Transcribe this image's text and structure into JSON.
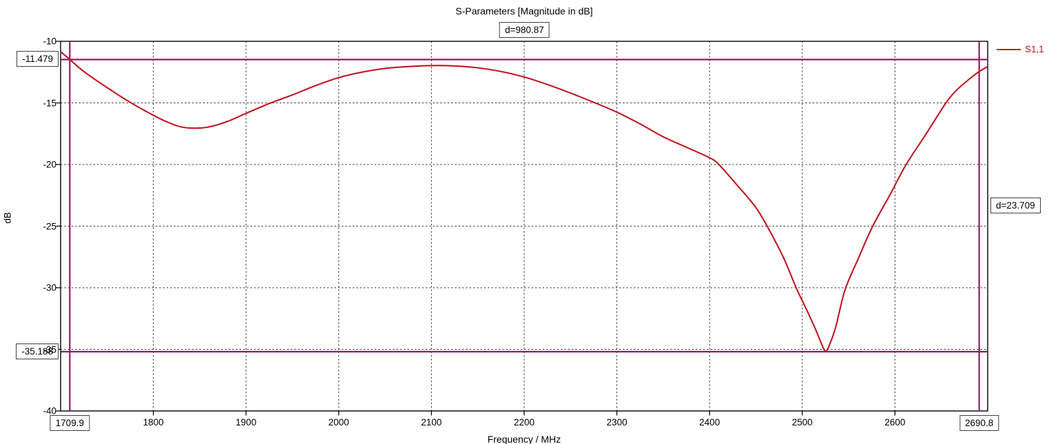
{
  "accent_colors": {
    "curve": "#c01622",
    "marker": "#8d1a60",
    "grid": "#3a3a3a",
    "axis": "#000000"
  },
  "legend": {
    "position": "top-right"
  },
  "markers": {
    "h_lines": [
      {
        "value": -11.479,
        "label": "-11.479"
      },
      {
        "value": -35.188,
        "label": "-35.188"
      }
    ],
    "v_lines": [
      {
        "value": 1709.9,
        "label": "1709.9"
      },
      {
        "value": 2690.8,
        "label": "2690.8"
      }
    ],
    "delta_x": {
      "label": "d=980.87"
    },
    "delta_y": {
      "label": "d=23.709"
    }
  },
  "chart_data": {
    "type": "line",
    "title": "S-Parameters [Magnitude in dB]",
    "xlabel": "Frequency / MHz",
    "ylabel": "dB",
    "xlim": [
      1700,
      2700
    ],
    "ylim": [
      -40,
      -10
    ],
    "xticks": [
      1800,
      1900,
      2000,
      2100,
      2200,
      2300,
      2400,
      2500,
      2600
    ],
    "yticks": [
      -10,
      -15,
      -20,
      -25,
      -30,
      -35,
      -40
    ],
    "grid": "dashed",
    "legend_position": "top-right",
    "series": [
      {
        "name": "S1,1",
        "color": "#c01622",
        "points": [
          [
            1700,
            -10.85
          ],
          [
            1710,
            -11.48
          ],
          [
            1725,
            -12.45
          ],
          [
            1750,
            -13.75
          ],
          [
            1775,
            -14.95
          ],
          [
            1800,
            -16.0
          ],
          [
            1815,
            -16.55
          ],
          [
            1830,
            -16.95
          ],
          [
            1845,
            -17.05
          ],
          [
            1860,
            -16.95
          ],
          [
            1880,
            -16.5
          ],
          [
            1900,
            -15.85
          ],
          [
            1925,
            -15.05
          ],
          [
            1950,
            -14.35
          ],
          [
            1975,
            -13.6
          ],
          [
            2000,
            -12.95
          ],
          [
            2025,
            -12.5
          ],
          [
            2050,
            -12.2
          ],
          [
            2075,
            -12.05
          ],
          [
            2100,
            -11.97
          ],
          [
            2125,
            -12.0
          ],
          [
            2150,
            -12.15
          ],
          [
            2175,
            -12.45
          ],
          [
            2200,
            -12.9
          ],
          [
            2225,
            -13.5
          ],
          [
            2250,
            -14.2
          ],
          [
            2275,
            -14.95
          ],
          [
            2300,
            -15.75
          ],
          [
            2325,
            -16.7
          ],
          [
            2350,
            -17.75
          ],
          [
            2375,
            -18.6
          ],
          [
            2400,
            -19.45
          ],
          [
            2410,
            -20.0
          ],
          [
            2430,
            -21.7
          ],
          [
            2450,
            -23.5
          ],
          [
            2465,
            -25.4
          ],
          [
            2480,
            -27.6
          ],
          [
            2494,
            -30.1
          ],
          [
            2506,
            -32.0
          ],
          [
            2515,
            -33.5
          ],
          [
            2521,
            -34.6
          ],
          [
            2525,
            -35.15
          ],
          [
            2529,
            -34.7
          ],
          [
            2536,
            -33.2
          ],
          [
            2546,
            -30.2
          ],
          [
            2560,
            -27.7
          ],
          [
            2576,
            -25.0
          ],
          [
            2595,
            -22.4
          ],
          [
            2612,
            -20.0
          ],
          [
            2632,
            -17.7
          ],
          [
            2655,
            -15.0
          ],
          [
            2666,
            -14.0
          ],
          [
            2678,
            -13.2
          ],
          [
            2690,
            -12.5
          ],
          [
            2700,
            -12.05
          ]
        ]
      }
    ]
  }
}
